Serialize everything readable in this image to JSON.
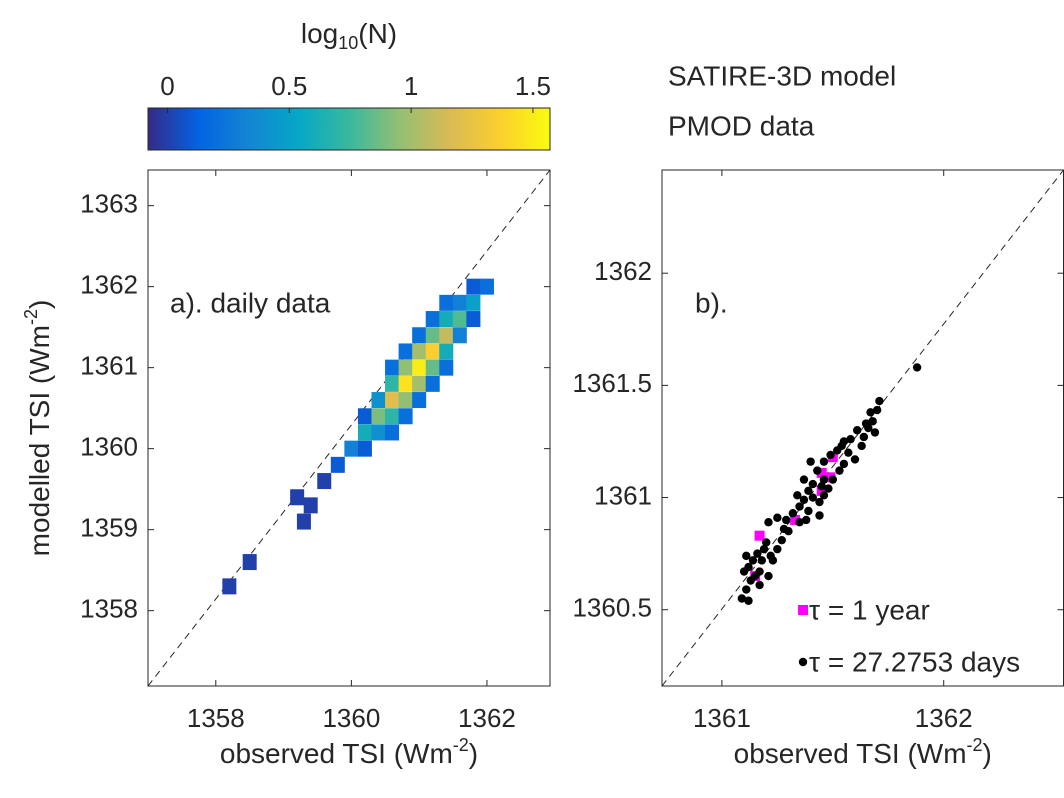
{
  "chart_data": [
    {
      "type": "hist2d",
      "annotation": "a). daily data",
      "xlabel": [
        "observed TSI (Wm",
        "-2",
        ")"
      ],
      "ylabel": [
        "modelled TSI (Wm",
        "-2",
        ")"
      ],
      "xlim": [
        1357,
        1362.93
      ],
      "ylim": [
        1357.07,
        1363.44
      ],
      "xticks": [
        1358,
        1360,
        1362
      ],
      "yticks": [
        1358,
        1359,
        1360,
        1361,
        1362,
        1363
      ],
      "colorbar": {
        "label": [
          "log",
          "10",
          "(N)"
        ],
        "lim": [
          -0.08,
          1.57
        ],
        "ticks": [
          0,
          0.5,
          1,
          1.5
        ],
        "colormap": "parula"
      },
      "x": [
        1359.6,
        1359.8,
        1360.0,
        1360.2,
        1360.2,
        1360.2,
        1360.4,
        1360.4,
        1360.4,
        1360.6,
        1360.6,
        1360.6,
        1360.6,
        1360.6,
        1360.8,
        1360.8,
        1360.8,
        1360.8,
        1360.8,
        1361.0,
        1361.0,
        1361.0,
        1361.0,
        1361.0,
        1361.2,
        1361.2,
        1361.2,
        1361.2,
        1361.2,
        1361.4,
        1361.4,
        1361.4,
        1361.4,
        1361.4,
        1361.6,
        1361.6,
        1361.6,
        1361.8,
        1361.8,
        1361.8,
        1362.0,
        1358.2,
        1358.5,
        1359.2,
        1359.3,
        1359.4
      ],
      "y": [
        1359.6,
        1359.8,
        1360.0,
        1360.2,
        1360.0,
        1360.4,
        1360.4,
        1360.2,
        1360.6,
        1360.6,
        1360.4,
        1360.8,
        1360.2,
        1361.0,
        1360.8,
        1360.6,
        1361.0,
        1360.4,
        1361.2,
        1361.0,
        1360.8,
        1361.2,
        1360.6,
        1361.4,
        1361.2,
        1361.0,
        1361.4,
        1360.8,
        1361.6,
        1361.4,
        1361.2,
        1361.6,
        1361.0,
        1361.8,
        1361.6,
        1361.4,
        1361.8,
        1361.8,
        1361.6,
        1362.0,
        1362.0,
        1358.3,
        1358.6,
        1359.4,
        1359.1,
        1359.3
      ],
      "values": [
        0,
        0.1,
        0.3,
        0.6,
        0.1,
        0.1,
        0.9,
        0.4,
        0.4,
        1.2,
        0.7,
        0.7,
        0.2,
        0.2,
        1.45,
        0.95,
        0.95,
        0.2,
        0.2,
        1.5,
        1.0,
        1.0,
        0.2,
        0.2,
        1.35,
        0.85,
        0.85,
        0.2,
        0.2,
        1.1,
        0.6,
        0.6,
        0.2,
        0.2,
        0.8,
        0.3,
        0.3,
        0.5,
        0.1,
        0.1,
        0.2,
        0,
        0,
        0,
        0,
        0
      ]
    },
    {
      "type": "scatter",
      "annotation": "b).",
      "xlabel": [
        "observed TSI (Wm",
        "-2",
        ")"
      ],
      "xlim": [
        1360.73,
        1362.54
      ],
      "ylim": [
        1360.16,
        1362.46
      ],
      "xticks": [
        1361,
        1362
      ],
      "yticks": [
        1360.5,
        1361,
        1361.5,
        1362
      ],
      "series": [
        {
          "name": "τ = 1 year",
          "color": "#ff00ff",
          "marker": "square",
          "x": [
            1361.5,
            1361.45,
            1361.49,
            1361.45,
            1361.33,
            1361.17,
            1361.15
          ],
          "y": [
            1361.18,
            1361.11,
            1361.09,
            1361.03,
            1360.9,
            1360.83,
            1360.65
          ]
        },
        {
          "name": "τ = 27.2753 days",
          "color": "#000000",
          "marker": "circle",
          "x": [
            1361.09,
            1361.12,
            1361.11,
            1361.13,
            1361.1,
            1361.15,
            1361.12,
            1361.14,
            1361.11,
            1361.16,
            1361.18,
            1361.19,
            1361.17,
            1361.2,
            1361.21,
            1361.25,
            1361.29,
            1361.32,
            1361.35,
            1361.37,
            1361.39,
            1361.34,
            1361.39,
            1361.41,
            1361.37,
            1361.43,
            1361.4,
            1361.46,
            1361.49,
            1361.52,
            1361.54,
            1361.55,
            1361.57,
            1361.55,
            1361.53,
            1361.46,
            1361.45,
            1361.48,
            1361.41,
            1361.44,
            1361.46,
            1361.5,
            1361.44,
            1361.38,
            1361.35,
            1361.3,
            1361.27,
            1361.25,
            1361.22,
            1361.28,
            1361.58,
            1361.61,
            1361.64,
            1361.66,
            1361.68,
            1361.7,
            1361.71,
            1361.67,
            1361.65,
            1361.69,
            1361.63,
            1361.6,
            1361.88,
            1361.21,
            1361.17,
            1361.23
          ],
          "y": [
            1360.55,
            1360.54,
            1360.59,
            1360.63,
            1360.67,
            1360.65,
            1360.69,
            1360.72,
            1360.74,
            1360.75,
            1360.72,
            1360.77,
            1360.67,
            1360.8,
            1360.89,
            1360.91,
            1360.9,
            1360.93,
            1360.96,
            1360.99,
            1360.94,
            1361.01,
            1361.03,
            1361.06,
            1361.08,
            1361.12,
            1361.16,
            1361.16,
            1361.19,
            1361.21,
            1361.23,
            1361.25,
            1361.2,
            1361.15,
            1361.12,
            1361.08,
            1361.05,
            1361.04,
            1361.0,
            1360.98,
            1361.01,
            1361.08,
            1360.92,
            1360.9,
            1360.89,
            1360.85,
            1360.81,
            1360.77,
            1360.74,
            1360.86,
            1361.26,
            1361.3,
            1361.27,
            1361.31,
            1361.34,
            1361.39,
            1361.43,
            1361.38,
            1361.33,
            1361.29,
            1361.23,
            1361.17,
            1361.58,
            1360.65,
            1360.61,
            1360.72
          ]
        }
      ]
    }
  ],
  "header_lines": [
    "SATIRE-3D model",
    "PMOD data"
  ]
}
